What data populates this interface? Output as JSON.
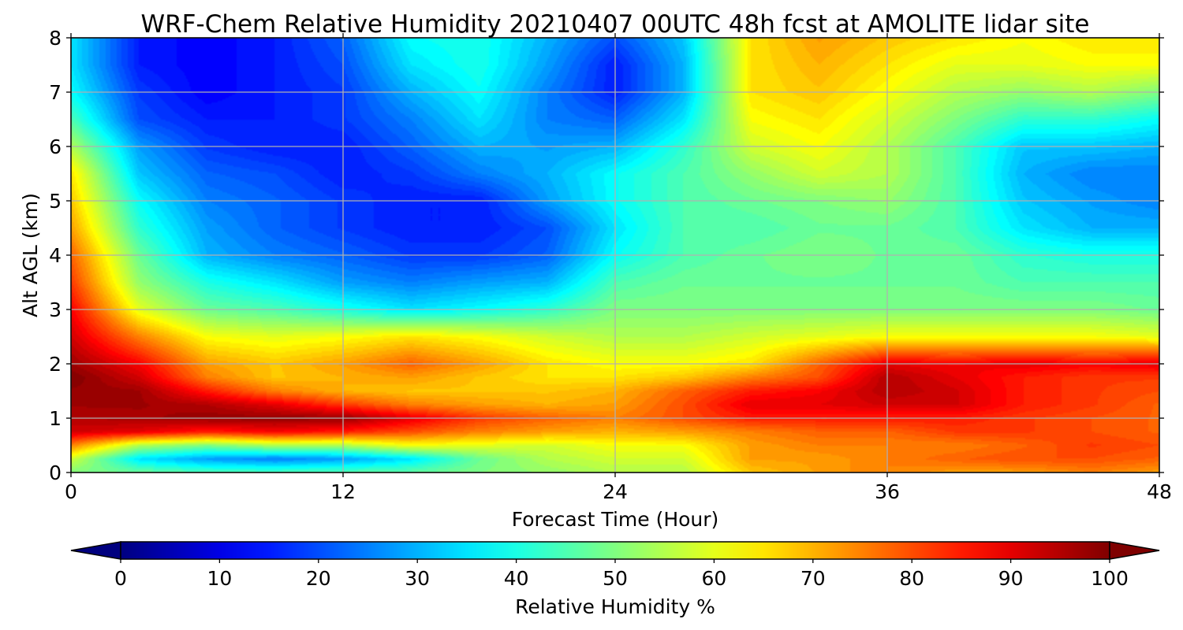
{
  "chart_data": {
    "type": "heatmap",
    "title": "WRF-Chem Relative Humidity 20210407 00UTC 48h fcst at AMOLITE lidar site",
    "xlabel": "Forecast Time (Hour)",
    "ylabel": "Alt AGL (km)",
    "xlim": [
      0,
      48
    ],
    "ylim": [
      0,
      8
    ],
    "x_ticks": [
      "0",
      "12",
      "24",
      "36",
      "48"
    ],
    "y_ticks": [
      "0",
      "1",
      "2",
      "3",
      "4",
      "5",
      "6",
      "7",
      "8"
    ],
    "grid": true,
    "colorbar": {
      "label": "Relative Humidity %",
      "range": [
        0,
        100
      ],
      "ticks": [
        "0",
        "10",
        "20",
        "30",
        "40",
        "50",
        "60",
        "70",
        "80",
        "90",
        "100"
      ],
      "extend": "both",
      "colormap": "jet"
    },
    "x": [
      0,
      3,
      6,
      9,
      12,
      15,
      18,
      21,
      24,
      27,
      30,
      33,
      36,
      39,
      42,
      45,
      48
    ],
    "y": [
      0,
      0.25,
      0.5,
      0.75,
      1,
      1.25,
      1.5,
      1.75,
      2,
      2.5,
      3,
      3.5,
      4,
      4.5,
      5,
      5.5,
      6,
      6.5,
      7,
      7.5,
      8
    ],
    "values": [
      [
        50,
        48,
        45,
        45,
        46,
        47,
        50,
        52,
        55,
        55,
        68,
        72,
        75,
        72,
        72,
        75,
        72
      ],
      [
        58,
        35,
        28,
        25,
        28,
        35,
        48,
        55,
        58,
        58,
        72,
        72,
        75,
        78,
        80,
        80,
        78
      ],
      [
        75,
        55,
        50,
        55,
        55,
        62,
        60,
        58,
        62,
        62,
        72,
        75,
        75,
        75,
        78,
        82,
        80
      ],
      [
        92,
        90,
        85,
        88,
        85,
        80,
        75,
        72,
        70,
        72,
        75,
        78,
        78,
        82,
        82,
        80,
        78
      ],
      [
        95,
        96,
        98,
        98,
        98,
        90,
        82,
        78,
        75,
        80,
        85,
        85,
        85,
        85,
        82,
        80,
        78
      ],
      [
        97,
        97,
        95,
        90,
        82,
        75,
        72,
        70,
        72,
        80,
        90,
        90,
        92,
        92,
        85,
        82,
        78
      ],
      [
        98,
        97,
        85,
        75,
        70,
        68,
        68,
        68,
        70,
        78,
        85,
        88,
        95,
        92,
        85,
        82,
        80
      ],
      [
        100,
        92,
        75,
        68,
        70,
        72,
        68,
        65,
        65,
        68,
        75,
        80,
        95,
        90,
        85,
        82,
        82
      ],
      [
        97,
        88,
        72,
        68,
        72,
        78,
        72,
        65,
        62,
        62,
        65,
        78,
        90,
        88,
        90,
        88,
        90
      ],
      [
        92,
        75,
        62,
        60,
        62,
        65,
        62,
        58,
        55,
        55,
        58,
        60,
        62,
        62,
        62,
        62,
        60
      ],
      [
        88,
        60,
        48,
        45,
        40,
        35,
        38,
        42,
        50,
        50,
        50,
        50,
        50,
        50,
        50,
        50,
        48
      ],
      [
        82,
        52,
        40,
        35,
        28,
        25,
        28,
        30,
        45,
        48,
        48,
        48,
        48,
        48,
        45,
        45,
        45
      ],
      [
        78,
        48,
        30,
        25,
        22,
        18,
        18,
        22,
        38,
        45,
        48,
        50,
        48,
        48,
        42,
        40,
        40
      ],
      [
        72,
        42,
        28,
        22,
        18,
        15,
        15,
        20,
        35,
        45,
        45,
        48,
        48,
        45,
        35,
        30,
        30
      ],
      [
        68,
        38,
        25,
        22,
        18,
        15,
        15,
        28,
        38,
        45,
        48,
        50,
        52,
        45,
        32,
        28,
        25
      ],
      [
        65,
        32,
        22,
        20,
        15,
        18,
        25,
        30,
        38,
        45,
        52,
        58,
        55,
        45,
        30,
        25,
        25
      ],
      [
        55,
        28,
        18,
        15,
        15,
        22,
        30,
        28,
        30,
        42,
        58,
        62,
        55,
        45,
        32,
        32,
        30
      ],
      [
        45,
        20,
        15,
        15,
        18,
        25,
        35,
        25,
        22,
        35,
        62,
        65,
        58,
        50,
        42,
        42,
        38
      ],
      [
        38,
        18,
        12,
        15,
        18,
        30,
        38,
        25,
        15,
        30,
        65,
        68,
        62,
        55,
        52,
        55,
        50
      ],
      [
        35,
        15,
        12,
        15,
        20,
        35,
        40,
        28,
        15,
        30,
        65,
        70,
        65,
        60,
        60,
        62,
        62
      ],
      [
        35,
        15,
        12,
        15,
        22,
        38,
        40,
        30,
        20,
        32,
        65,
        72,
        68,
        65,
        62,
        65,
        65
      ]
    ]
  }
}
